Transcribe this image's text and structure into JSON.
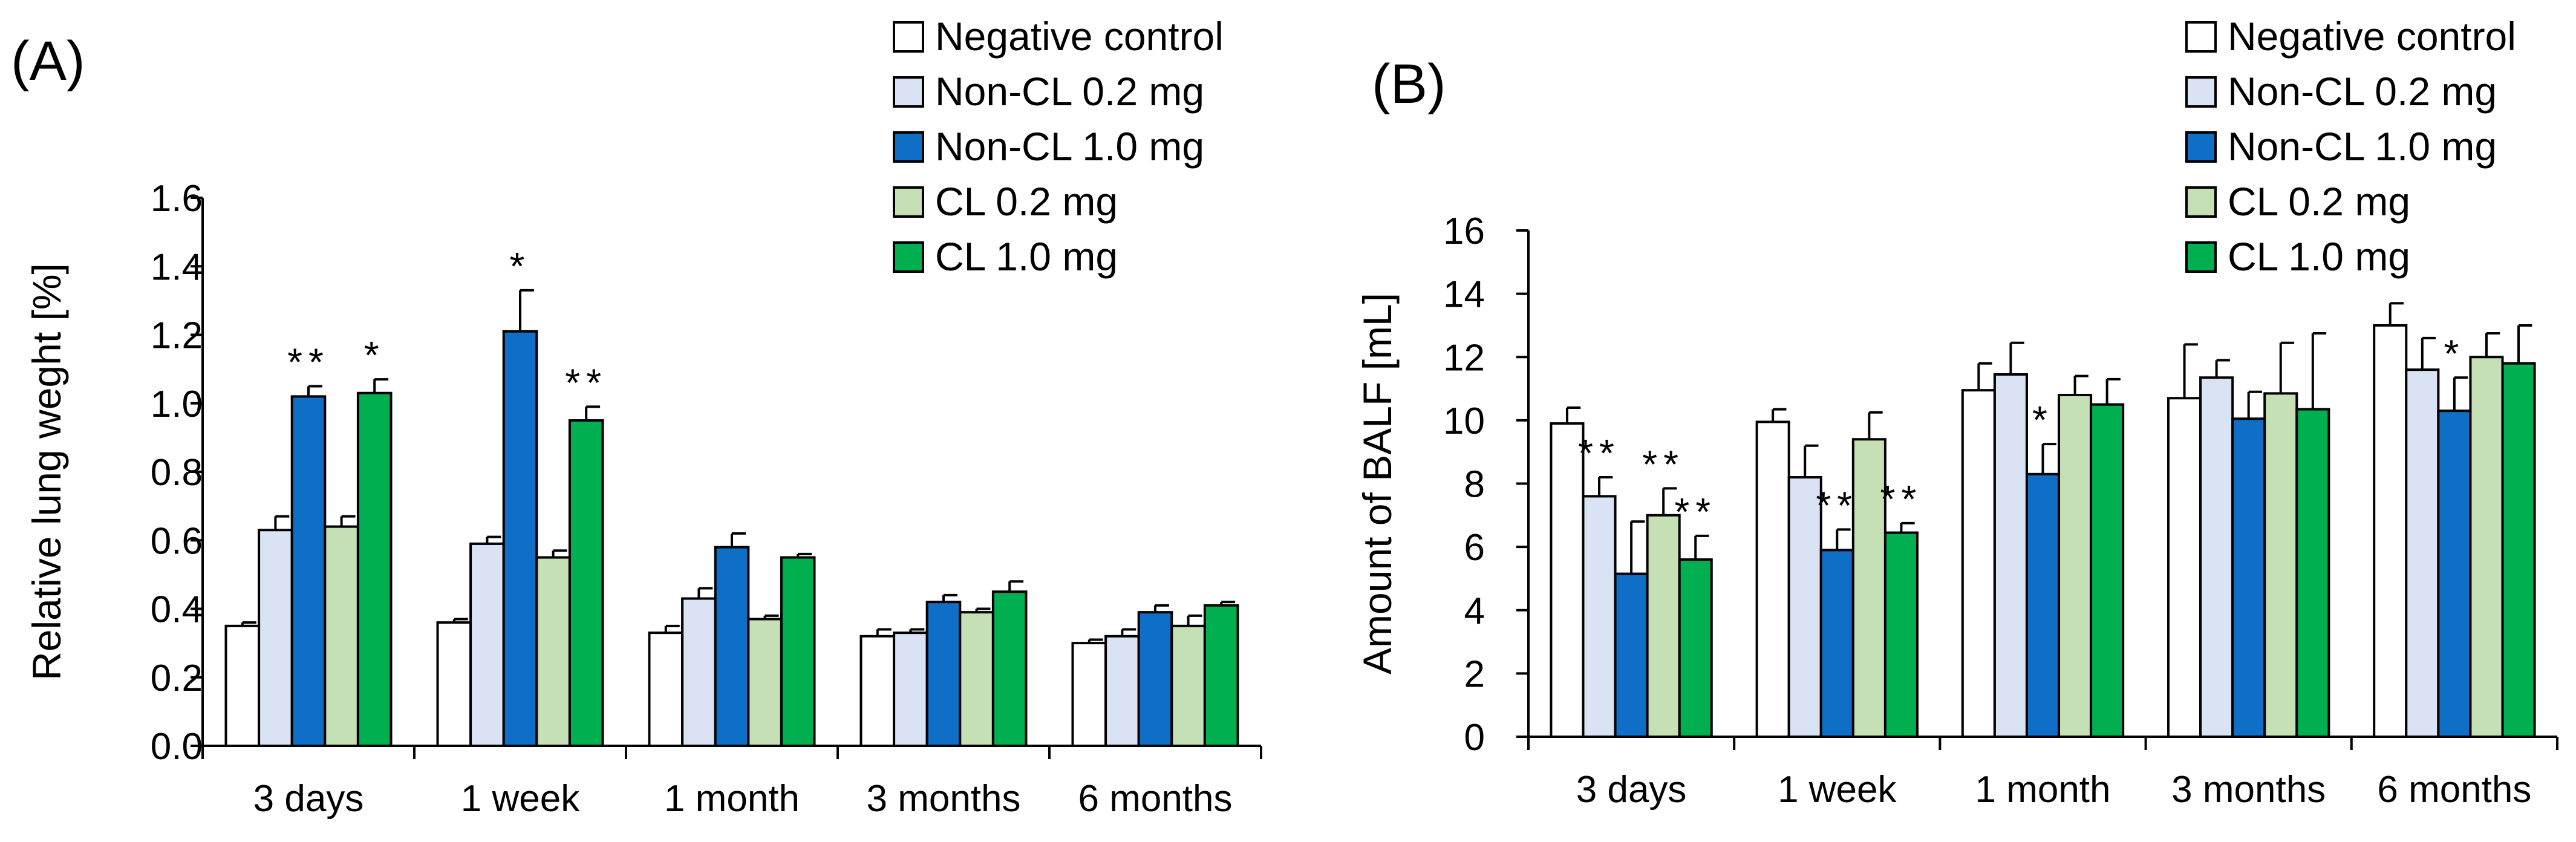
{
  "legend": [
    {
      "name": "Negative control",
      "color": "#ffffff"
    },
    {
      "name": "Non-CL 0.2 mg",
      "color": "#dae3f3"
    },
    {
      "name": "Non-CL 1.0 mg",
      "color": "#0f6fc6"
    },
    {
      "name": "CL 0.2 mg",
      "color": "#c5e0b4"
    },
    {
      "name": "CL 1.0 mg",
      "color": "#00b050"
    }
  ],
  "chart_data": [
    {
      "panel_label": "(A)",
      "type": "bar",
      "title": "",
      "xlabel": "",
      "ylabel": "Relative lung weght [%]",
      "ylim": [
        0,
        1.6
      ],
      "yticks": [
        "0.0",
        "0.2",
        "0.4",
        "0.6",
        "0.8",
        "1.0",
        "1.2",
        "1.4",
        "1.6"
      ],
      "categories": [
        "3 days",
        "1 week",
        "1 month",
        "3 months",
        "6 months"
      ],
      "series": [
        {
          "name": "Negative control",
          "values": [
            0.35,
            0.36,
            0.33,
            0.32,
            0.3
          ],
          "errors": [
            0.01,
            0.01,
            0.02,
            0.02,
            0.01
          ]
        },
        {
          "name": "Non-CL 0.2 mg",
          "values": [
            0.63,
            0.59,
            0.43,
            0.33,
            0.32
          ],
          "errors": [
            0.04,
            0.02,
            0.03,
            0.01,
            0.02
          ]
        },
        {
          "name": "Non-CL 1.0 mg",
          "values": [
            1.02,
            1.21,
            0.58,
            0.42,
            0.39
          ],
          "errors": [
            0.03,
            0.12,
            0.04,
            0.02,
            0.02
          ]
        },
        {
          "name": "CL 0.2 mg",
          "values": [
            0.64,
            0.55,
            0.37,
            0.39,
            0.35
          ],
          "errors": [
            0.03,
            0.02,
            0.01,
            0.01,
            0.03
          ]
        },
        {
          "name": "CL 1.0 mg",
          "values": [
            1.03,
            0.95,
            0.55,
            0.45,
            0.41
          ],
          "errors": [
            0.04,
            0.04,
            0.01,
            0.03,
            0.01
          ]
        }
      ],
      "annotations": [
        {
          "category": 0,
          "series": 2,
          "text": "**"
        },
        {
          "category": 0,
          "series": 4,
          "text": "*"
        },
        {
          "category": 1,
          "series": 2,
          "text": "*"
        },
        {
          "category": 1,
          "series": 4,
          "text": "**"
        }
      ]
    },
    {
      "panel_label": "(B)",
      "type": "bar",
      "title": "",
      "xlabel": "",
      "ylabel": "Amount of BALF [mL]",
      "ylim": [
        0,
        16
      ],
      "yticks": [
        "0",
        "2",
        "4",
        "6",
        "8",
        "10",
        "12",
        "14",
        "16"
      ],
      "categories": [
        "3 days",
        "1 week",
        "1 month",
        "3 months",
        "6 months"
      ],
      "series": [
        {
          "name": "Negative control",
          "values": [
            9.9,
            9.95,
            10.95,
            10.7,
            13.0
          ],
          "errors": [
            0.5,
            0.4,
            0.85,
            1.7,
            0.7
          ]
        },
        {
          "name": "Non-CL 0.2 mg",
          "values": [
            7.6,
            8.2,
            11.45,
            11.35,
            11.6
          ],
          "errors": [
            0.6,
            1.0,
            1.0,
            0.55,
            1.0
          ]
        },
        {
          "name": "Non-CL 1.0 mg",
          "values": [
            5.15,
            5.9,
            8.3,
            10.05,
            10.3
          ],
          "errors": [
            1.65,
            0.65,
            0.95,
            0.85,
            1.05
          ]
        },
        {
          "name": "CL 0.2 mg",
          "values": [
            7.0,
            9.4,
            10.8,
            10.85,
            12.0
          ],
          "errors": [
            0.85,
            0.85,
            0.6,
            1.6,
            0.75
          ]
        },
        {
          "name": "CL 1.0 mg",
          "values": [
            5.6,
            6.45,
            10.5,
            10.35,
            11.8
          ],
          "errors": [
            0.75,
            0.3,
            0.8,
            2.4,
            1.2
          ]
        }
      ],
      "annotations": [
        {
          "category": 0,
          "series": 1,
          "text": "**"
        },
        {
          "category": 0,
          "series": 3,
          "text": "**"
        },
        {
          "category": 0,
          "series": 4,
          "text": "**"
        },
        {
          "category": 1,
          "series": 2,
          "text": "**"
        },
        {
          "category": 1,
          "series": 4,
          "text": "**"
        },
        {
          "category": 2,
          "series": 2,
          "text": "*"
        },
        {
          "category": 4,
          "series": 2,
          "text": "*"
        }
      ]
    }
  ]
}
